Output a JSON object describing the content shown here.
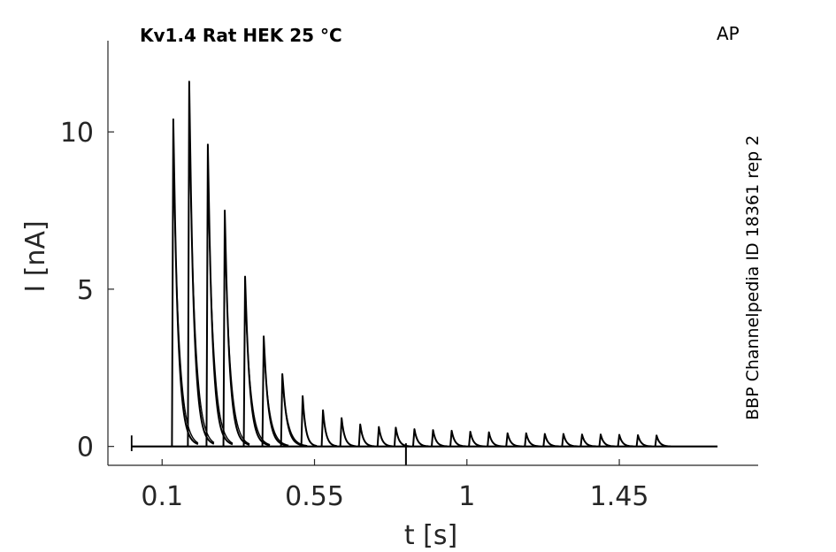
{
  "chart_data": {
    "type": "line",
    "title": "Kv1.4  Rat  HEK  25 °C",
    "corner_label": "AP",
    "side_label": "BBP Channelpedia ID 18361 rep 2",
    "xlabel": "t [s]",
    "ylabel": "I [nA]",
    "xlim": [
      -0.06,
      1.86
    ],
    "ylim": [
      -0.6,
      12.9
    ],
    "xticks": [
      0.1,
      0.55,
      1,
      1.45
    ],
    "xtick_labels": [
      "0.1",
      "0.55",
      "1",
      "1.45"
    ],
    "yticks": [
      0,
      5,
      10
    ],
    "ytick_labels": [
      "0",
      "5",
      "10"
    ],
    "grid": false,
    "legend": "none",
    "line_color": "#000000",
    "baseline_start": 0.01,
    "baseline_end": 1.74,
    "stimulus_onset": 0.01,
    "marker_time": 0.82,
    "peaks": [
      {
        "t": 0.133,
        "i": 10.4
      },
      {
        "t": 0.18,
        "i": 11.6
      },
      {
        "t": 0.235,
        "i": 9.6
      },
      {
        "t": 0.285,
        "i": 7.5
      },
      {
        "t": 0.345,
        "i": 5.4
      },
      {
        "t": 0.4,
        "i": 3.5
      },
      {
        "t": 0.455,
        "i": 2.3
      },
      {
        "t": 0.515,
        "i": 1.6
      },
      {
        "t": 0.575,
        "i": 1.15
      },
      {
        "t": 0.63,
        "i": 0.9
      },
      {
        "t": 0.685,
        "i": 0.7
      },
      {
        "t": 0.74,
        "i": 0.62
      },
      {
        "t": 0.79,
        "i": 0.6
      },
      {
        "t": 0.845,
        "i": 0.55
      },
      {
        "t": 0.9,
        "i": 0.52
      },
      {
        "t": 0.955,
        "i": 0.5
      },
      {
        "t": 1.01,
        "i": 0.47
      },
      {
        "t": 1.065,
        "i": 0.45
      },
      {
        "t": 1.12,
        "i": 0.42
      },
      {
        "t": 1.175,
        "i": 0.42
      },
      {
        "t": 1.23,
        "i": 0.4
      },
      {
        "t": 1.285,
        "i": 0.4
      },
      {
        "t": 1.34,
        "i": 0.38
      },
      {
        "t": 1.395,
        "i": 0.38
      },
      {
        "t": 1.45,
        "i": 0.37
      },
      {
        "t": 1.505,
        "i": 0.36
      },
      {
        "t": 1.56,
        "i": 0.35
      }
    ]
  }
}
